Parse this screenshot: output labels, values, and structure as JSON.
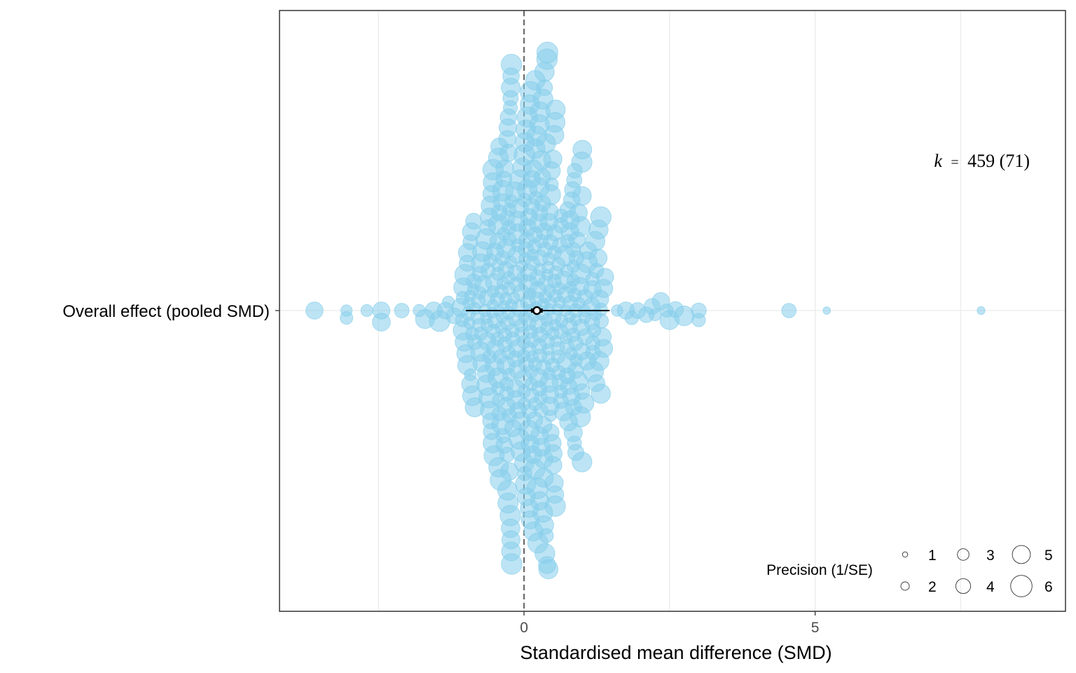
{
  "chart_data": {
    "type": "scatter",
    "subtype": "orchard / beeswarm",
    "xlabel": "Standardised mean difference (SMD)",
    "ylabel": "",
    "category": "Overall effect (pooled SMD)",
    "xlim": [
      -4.2,
      9.3
    ],
    "x_ticks": [
      0,
      5
    ],
    "x_tick_labels": [
      "0",
      "5"
    ],
    "reference_line": 0,
    "grid": true,
    "annotation": {
      "k_label": "k",
      "equals": "=",
      "value": "459 (71)"
    },
    "pooled_estimate": 0.22,
    "confidence_interval": [
      0.12,
      0.32
    ],
    "prediction_interval": [
      -1.0,
      1.47
    ],
    "point_color": "#87CEEB",
    "point_alpha": 0.55,
    "legend": {
      "title": "Precision (1/SE)",
      "position": "bottom-right",
      "sizes": [
        "1",
        "2",
        "3",
        "4",
        "5",
        "6"
      ]
    },
    "n_points": 459,
    "n_studies": 71,
    "seed": 459,
    "effect_distribution": {
      "center": 0.15,
      "spread": 0.7,
      "core_range": [
        -1.1,
        1.5
      ],
      "tail_left": [
        -3.6,
        -3.05,
        -3.05,
        -2.7,
        -2.45,
        -2.45,
        -2.1,
        -1.8,
        -1.7,
        -1.55,
        -1.45,
        -1.35,
        -1.3,
        -1.2
      ],
      "tail_right": [
        1.6,
        1.75,
        1.85,
        1.95,
        2.1,
        2.2,
        2.25,
        2.35,
        2.45,
        2.5,
        2.6,
        2.75,
        3.0,
        3.0,
        4.55,
        5.2,
        7.85
      ]
    }
  }
}
